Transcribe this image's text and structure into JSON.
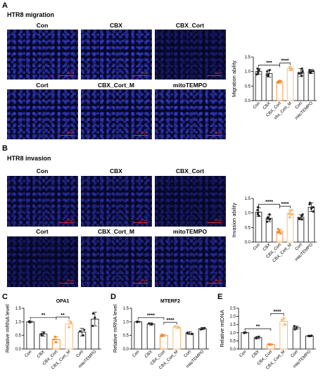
{
  "panels": {
    "A": {
      "letter": "A",
      "title": "HTR8 migration",
      "labels": [
        "Con",
        "CBX",
        "CBX_Cort",
        "Cort",
        "CBX_Cort_M",
        "mitoTEMPO"
      ],
      "scale_text": "100μm"
    },
    "B": {
      "letter": "B",
      "title": "HTR8 invasion",
      "labels": [
        "Con",
        "CBX",
        "CBX_Cort",
        "Cort",
        "CBX_Cort_M",
        "mitoTEMPO"
      ],
      "scale_text": "100μm"
    },
    "C": {
      "letter": "C"
    },
    "D": {
      "letter": "D"
    },
    "E": {
      "letter": "E"
    }
  },
  "colors": {
    "black": "#222222",
    "orange": "#f28a30",
    "light_orange": "#f5b877"
  },
  "chart_data": [
    {
      "id": "A",
      "type": "bar",
      "title": "",
      "ylabel": "Migration ability",
      "ylim": [
        0,
        1.5
      ],
      "yticks": [
        "0.0",
        "0.5",
        "1.0",
        "1.5"
      ],
      "categories": [
        "Con",
        "CBX",
        "CBX_Cort",
        "cbx_Cort_M",
        "Cort",
        "mitoTEMPO"
      ],
      "values": [
        1.0,
        0.93,
        0.65,
        1.1,
        0.97,
        1.0
      ],
      "errors": [
        0.1,
        0.12,
        0.05,
        0.07,
        0.13,
        0.07
      ],
      "points": [
        [
          0.9,
          1.05,
          1.1,
          0.95,
          1.0
        ],
        [
          0.85,
          1.0,
          0.9,
          1.05,
          0.87
        ],
        [
          0.62,
          0.66,
          0.68,
          0.64,
          0.63
        ],
        [
          1.05,
          1.12,
          1.15,
          1.08,
          1.1
        ],
        [
          0.85,
          1.1,
          0.95,
          1.02,
          0.93
        ],
        [
          0.95,
          1.02,
          1.05,
          0.97,
          1.0
        ]
      ],
      "bar_colors": [
        "#222222",
        "#222222",
        "#f28a30",
        "#f5b877",
        "#222222",
        "#222222"
      ],
      "annotations": [
        {
          "from": 0,
          "to": 2,
          "text": "***"
        },
        {
          "from": 2,
          "to": 3,
          "text": "****"
        }
      ]
    },
    {
      "id": "B",
      "type": "bar",
      "title": "",
      "ylabel": "Invasion ability",
      "ylim": [
        0,
        1.5
      ],
      "yticks": [
        "0.0",
        "0.5",
        "1.0",
        "1.5"
      ],
      "categories": [
        "Con",
        "CBX",
        "CBX_Cort",
        "CBX_Cort_M",
        "Cort",
        "mitoTEMPO"
      ],
      "values": [
        1.03,
        0.82,
        0.37,
        0.98,
        0.85,
        1.2
      ],
      "errors": [
        0.15,
        0.12,
        0.07,
        0.13,
        0.09,
        0.15
      ],
      "points": [
        [
          0.9,
          1.1,
          1.2,
          0.95,
          1.0
        ],
        [
          0.7,
          0.85,
          0.95,
          0.8,
          0.78
        ],
        [
          0.3,
          0.4,
          0.45,
          0.35,
          0.33
        ],
        [
          0.85,
          1.05,
          1.1,
          0.95,
          0.97
        ],
        [
          0.78,
          0.9,
          0.95,
          0.8,
          0.82
        ],
        [
          1.05,
          1.3,
          1.35,
          1.15,
          1.2
        ]
      ],
      "bar_colors": [
        "#222222",
        "#222222",
        "#f28a30",
        "#f5b877",
        "#222222",
        "#222222"
      ],
      "annotations": [
        {
          "from": 0,
          "to": 2,
          "text": "****"
        },
        {
          "from": 2,
          "to": 3,
          "text": "****"
        }
      ]
    },
    {
      "id": "C",
      "type": "bar",
      "title": "OPA1",
      "ylabel": "Relative mRNA level",
      "ylim": [
        0,
        1.5
      ],
      "yticks": [
        "0.0",
        "0.5",
        "1.0",
        "1.5"
      ],
      "categories": [
        "Con",
        "CBX",
        "CBX_Cort",
        "CBX_Cort_M",
        "Cort",
        "mitoTEMPO"
      ],
      "values": [
        1.0,
        0.55,
        0.35,
        0.92,
        0.62,
        1.1
      ],
      "errors": [
        0.03,
        0.08,
        0.1,
        0.12,
        0.14,
        0.25
      ],
      "points": [
        [
          1.0,
          0.98,
          1.02
        ],
        [
          0.5,
          0.6,
          0.55
        ],
        [
          0.25,
          0.35,
          0.45
        ],
        [
          0.8,
          0.95,
          1.0
        ],
        [
          0.5,
          0.7,
          0.65
        ],
        [
          0.85,
          1.3,
          1.15
        ]
      ],
      "bar_colors": [
        "#222222",
        "#222222",
        "#f28a30",
        "#f5b877",
        "#222222",
        "#222222"
      ],
      "annotations": [
        {
          "from": 0,
          "to": 2,
          "text": "**"
        },
        {
          "from": 2,
          "to": 3,
          "text": "**"
        }
      ]
    },
    {
      "id": "D",
      "type": "bar",
      "title": "MTERF2",
      "ylabel": "Relative mRNA level",
      "ylim": [
        0,
        1.5
      ],
      "yticks": [
        "0.0",
        "0.5",
        "1.0",
        "1.5"
      ],
      "categories": [
        "Con",
        "CBX",
        "CBX_Cort",
        "CBX_Cort_M",
        "Cort",
        "mitoTEMPO"
      ],
      "values": [
        1.0,
        0.92,
        0.5,
        0.8,
        0.58,
        0.75
      ],
      "errors": [
        0.02,
        0.04,
        0.04,
        0.05,
        0.05,
        0.04
      ],
      "points": [
        [
          1.0,
          0.99,
          1.01
        ],
        [
          0.9,
          0.94,
          0.92
        ],
        [
          0.47,
          0.5,
          0.53
        ],
        [
          0.78,
          0.8,
          0.83
        ],
        [
          0.55,
          0.58,
          0.6
        ],
        [
          0.72,
          0.75,
          0.77
        ]
      ],
      "bar_colors": [
        "#222222",
        "#222222",
        "#f28a30",
        "#f5b877",
        "#222222",
        "#222222"
      ],
      "annotations": [
        {
          "from": 0,
          "to": 2,
          "text": "****"
        },
        {
          "from": 2,
          "to": 3,
          "text": "****"
        }
      ]
    },
    {
      "id": "E",
      "type": "bar",
      "title": "",
      "ylabel": "Relative mtDNA",
      "ylim": [
        0,
        2.5
      ],
      "yticks": [
        "0.0",
        "0.5",
        "1.0",
        "1.5",
        "2.0",
        "2.5"
      ],
      "categories": [
        "Con",
        "CBX",
        "CBX_Cort",
        "CBX_Cort_M",
        "Cort",
        "mitoTEMPO"
      ],
      "values": [
        1.0,
        0.7,
        0.28,
        1.7,
        1.3,
        0.8
      ],
      "errors": [
        0.03,
        0.07,
        0.04,
        0.25,
        0.1,
        0.05
      ],
      "points": [
        [
          1.0,
          0.98,
          1.02
        ],
        [
          0.65,
          0.75,
          0.7
        ],
        [
          0.25,
          0.3,
          0.28
        ],
        [
          1.5,
          1.8,
          1.85
        ],
        [
          1.2,
          1.4,
          1.3
        ],
        [
          0.78,
          0.82,
          0.8
        ]
      ],
      "bar_colors": [
        "#222222",
        "#222222",
        "#f28a30",
        "#f5b877",
        "#222222",
        "#222222"
      ],
      "annotations": [
        {
          "from": 0,
          "to": 2,
          "text": "**"
        },
        {
          "from": 2,
          "to": 3,
          "text": "****"
        }
      ]
    }
  ]
}
